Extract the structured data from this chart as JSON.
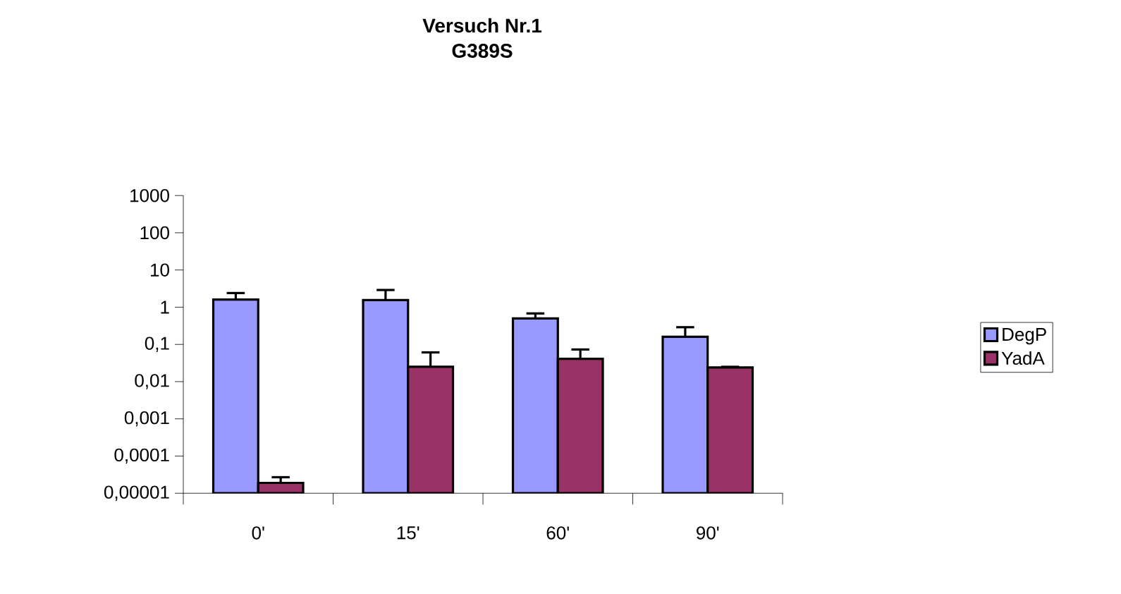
{
  "chart_data": {
    "type": "bar",
    "title": "Versuch Nr.1",
    "subtitle": "G389S",
    "categories": [
      "0'",
      "15'",
      "60'",
      "90'"
    ],
    "series": [
      {
        "name": "DegP",
        "color": "#9999ff",
        "values": [
          1.6,
          1.55,
          0.5,
          0.16
        ],
        "errors": [
          [
            1.6,
            2.4
          ],
          [
            1.55,
            2.9
          ],
          [
            0.5,
            0.68
          ],
          [
            0.16,
            0.29
          ]
        ]
      },
      {
        "name": "YadA",
        "color": "#993366",
        "values": [
          1.9e-05,
          0.025,
          0.041,
          0.024
        ],
        "errors": [
          [
            1.9e-05,
            2.7e-05
          ],
          [
            0.025,
            0.061
          ],
          [
            0.041,
            0.073
          ],
          [
            0.024,
            0.025
          ]
        ]
      }
    ],
    "log": "y",
    "ylim": [
      1e-05,
      1000
    ],
    "yticks": [
      {
        "value": 1e-05,
        "label": "0,00001"
      },
      {
        "value": 0.0001,
        "label": "0,0001"
      },
      {
        "value": 0.001,
        "label": "0,001"
      },
      {
        "value": 0.01,
        "label": "0,01"
      },
      {
        "value": 0.1,
        "label": "0,1"
      },
      1,
      10,
      100,
      1000
    ],
    "legend": "right"
  }
}
